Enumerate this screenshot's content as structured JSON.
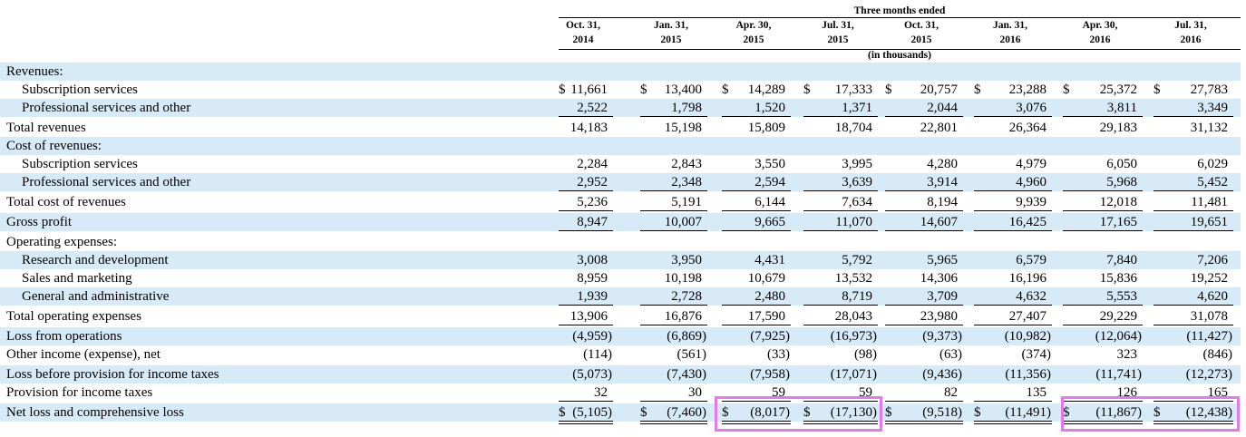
{
  "header": {
    "title": "Three months ended",
    "units": "(in thousands)",
    "columns": [
      {
        "line1": "Oct. 31,",
        "line2": "2014"
      },
      {
        "line1": "Jan. 31,",
        "line2": "2015"
      },
      {
        "line1": "Apr. 30,",
        "line2": "2015"
      },
      {
        "line1": "Jul. 31,",
        "line2": "2015"
      },
      {
        "line1": "Oct. 31,",
        "line2": "2015"
      },
      {
        "line1": "Jan. 31,",
        "line2": "2016"
      },
      {
        "line1": "Apr. 30,",
        "line2": "2016"
      },
      {
        "line1": "Jul. 31,",
        "line2": "2016"
      }
    ]
  },
  "rows": [
    {
      "label": "Revenues:",
      "values": []
    },
    {
      "label": "Subscription services",
      "dollar": true,
      "values": [
        "11,661",
        "13,400",
        "14,289",
        "17,333",
        "20,757",
        "23,288",
        "25,372",
        "27,783"
      ]
    },
    {
      "label": "Professional services and other",
      "values": [
        "2,522",
        "1,798",
        "1,520",
        "1,371",
        "2,044",
        "3,076",
        "3,811",
        "3,349"
      ]
    },
    {
      "label": "Total revenues",
      "values": [
        "14,183",
        "15,198",
        "15,809",
        "18,704",
        "22,801",
        "26,364",
        "29,183",
        "31,132"
      ]
    },
    {
      "label": "Cost of revenues:",
      "values": []
    },
    {
      "label": "Subscription services",
      "values": [
        "2,284",
        "2,843",
        "3,550",
        "3,995",
        "4,280",
        "4,979",
        "6,050",
        "6,029"
      ]
    },
    {
      "label": "Professional services and other",
      "values": [
        "2,952",
        "2,348",
        "2,594",
        "3,639",
        "3,914",
        "4,960",
        "5,968",
        "5,452"
      ]
    },
    {
      "label": "Total cost of revenues",
      "values": [
        "5,236",
        "5,191",
        "6,144",
        "7,634",
        "8,194",
        "9,939",
        "12,018",
        "11,481"
      ]
    },
    {
      "label": "Gross profit",
      "values": [
        "8,947",
        "10,007",
        "9,665",
        "11,070",
        "14,607",
        "16,425",
        "17,165",
        "19,651"
      ]
    },
    {
      "label": "Operating expenses:",
      "values": []
    },
    {
      "label": "Research and development",
      "values": [
        "3,008",
        "3,950",
        "4,431",
        "5,792",
        "5,965",
        "6,579",
        "7,840",
        "7,206"
      ]
    },
    {
      "label": "Sales and marketing",
      "values": [
        "8,959",
        "10,198",
        "10,679",
        "13,532",
        "14,306",
        "16,196",
        "15,836",
        "19,252"
      ]
    },
    {
      "label": "General and administrative",
      "values": [
        "1,939",
        "2,728",
        "2,480",
        "8,719",
        "3,709",
        "4,632",
        "5,553",
        "4,620"
      ]
    },
    {
      "label": "Total operating expenses",
      "values": [
        "13,906",
        "16,876",
        "17,590",
        "28,043",
        "23,980",
        "27,407",
        "29,229",
        "31,078"
      ]
    },
    {
      "label": "Loss from operations",
      "values": [
        "(4,959)",
        "(6,869)",
        "(7,925)",
        "(16,973)",
        "(9,373)",
        "(10,982)",
        "(12,064)",
        "(11,427)"
      ]
    },
    {
      "label": "Other income (expense), net",
      "values": [
        "(114)",
        "(561)",
        "(33)",
        "(98)",
        "(63)",
        "(374)",
        "323",
        "(846)"
      ]
    },
    {
      "label": "Loss before provision for income taxes",
      "values": [
        "(5,073)",
        "(7,430)",
        "(7,958)",
        "(17,071)",
        "(9,436)",
        "(11,356)",
        "(11,741)",
        "(12,273)"
      ]
    },
    {
      "label": "Provision for income taxes",
      "values": [
        "32",
        "30",
        "59",
        "59",
        "82",
        "135",
        "126",
        "165"
      ]
    },
    {
      "label": "Net loss and comprehensive loss",
      "dollar": true,
      "values": [
        "(5,105)",
        "(7,460)",
        "(8,017)",
        "(17,130)",
        "(9,518)",
        "(11,491)",
        "(11,867)",
        "(12,438)"
      ]
    }
  ],
  "currency_symbol": "$",
  "colors": {
    "shade": "#d6eaf8",
    "highlight": "#e47ae9"
  }
}
